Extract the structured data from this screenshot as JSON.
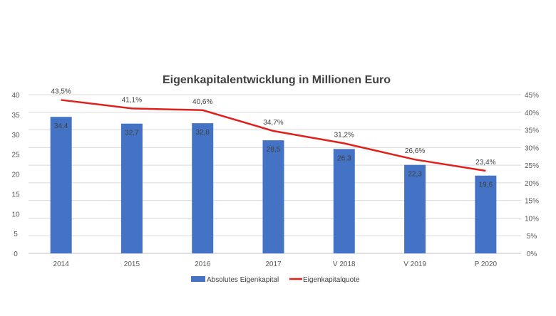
{
  "chart_data": {
    "type": "bar+line",
    "title": "Eigenkapitalentwicklung in Millionen Euro",
    "categories": [
      "2014",
      "2015",
      "2016",
      "2017",
      "V 2018",
      "V 2019",
      "P 2020"
    ],
    "series": [
      {
        "name": "Absolutes Eigenkapital",
        "type": "bar",
        "axis": "left",
        "color": "#4472C4",
        "values": [
          34.4,
          32.7,
          32.8,
          28.5,
          26.3,
          22.3,
          19.6
        ],
        "labels": [
          "34,4",
          "32,7",
          "32,8",
          "28,5",
          "26,3",
          "22,3",
          "19,6"
        ]
      },
      {
        "name": "Eigenkapitalquote",
        "type": "line",
        "axis": "right",
        "color": "#E0201B",
        "values": [
          43.5,
          41.1,
          40.6,
          34.7,
          31.2,
          26.6,
          23.4
        ],
        "labels": [
          "43,5%",
          "41,1%",
          "40,6%",
          "34,7%",
          "31,2%",
          "26,6%",
          "23,4%"
        ]
      }
    ],
    "left_axis": {
      "ylim": [
        0,
        40
      ],
      "ticks": [
        "0",
        "5",
        "10",
        "15",
        "20",
        "25",
        "30",
        "35",
        "40"
      ]
    },
    "right_axis": {
      "ylim": [
        0,
        45
      ],
      "ticks": [
        "0%",
        "5%",
        "10%",
        "15%",
        "20%",
        "25%",
        "30%",
        "35%",
        "40%",
        "45%"
      ]
    },
    "grid": true,
    "legend": "bottom"
  }
}
